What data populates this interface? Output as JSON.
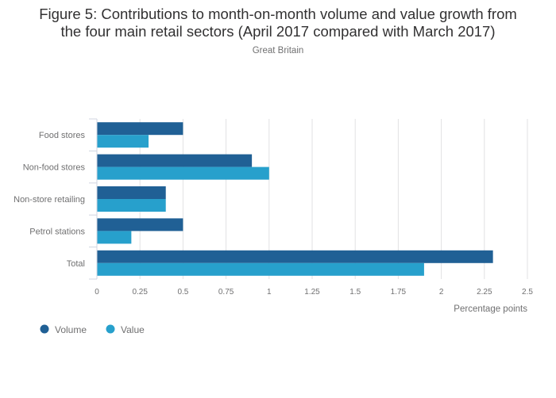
{
  "chart_data": {
    "type": "bar",
    "orientation": "horizontal",
    "title": "Figure 5: Contributions to month-on-month volume and value growth from the four main retail sectors (April 2017 compared with March 2017)",
    "title_line1": "Figure 5: Contributions to month-on-month volume and value growth from",
    "title_line2": "the four main retail sectors (April 2017 compared with March 2017)",
    "subtitle": "Great Britain",
    "categories": [
      "Food stores",
      "Non-food stores",
      "Non-store retailing",
      "Petrol stations",
      "Total"
    ],
    "series": [
      {
        "name": "Volume",
        "color": "#206095",
        "values": [
          0.5,
          0.9,
          0.4,
          0.5,
          2.3
        ]
      },
      {
        "name": "Value",
        "color": "#27a0cc",
        "values": [
          0.3,
          1.0,
          0.4,
          0.2,
          1.9
        ]
      }
    ],
    "xlabel": "Percentage points",
    "ylabel": "",
    "xlim": [
      0,
      2.5
    ],
    "xticks": [
      0,
      0.25,
      0.5,
      0.75,
      1,
      1.25,
      1.5,
      1.75,
      2,
      2.25,
      2.5
    ],
    "xtick_labels": [
      "0",
      "0.25",
      "0.5",
      "0.75",
      "1",
      "1.25",
      "1.5",
      "1.75",
      "2",
      "2.25",
      "2.5"
    ],
    "grid": true,
    "legend_position": "bottom-left"
  }
}
